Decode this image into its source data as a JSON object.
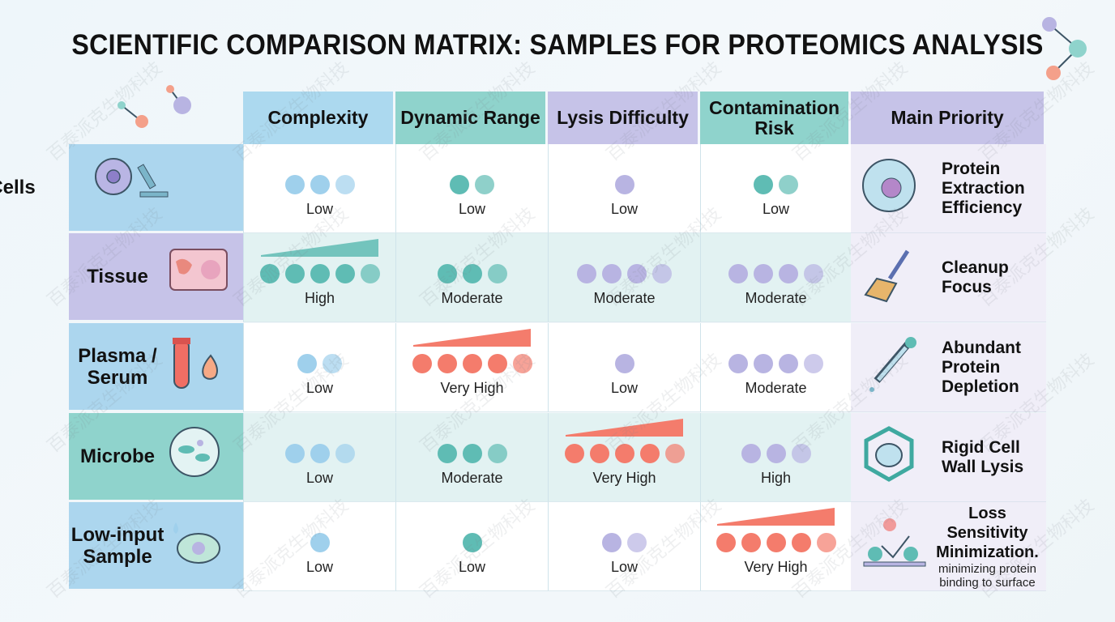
{
  "title": "SCIENTIFIC COMPARISON MATRIX: SAMPLES FOR PROTEOMICS ANALYSIS",
  "watermark": "百泰派克生物科技",
  "colors": {
    "blue": "#9fd0ec",
    "teal": "#5fbcb4",
    "purple": "#b8b4e2",
    "coral": "#f47c6c"
  },
  "columns": [
    {
      "label": "Complexity",
      "color": "#acd9ef"
    },
    {
      "label": "Dynamic Range",
      "color": "#8fd3cc"
    },
    {
      "label": "Lysis Difficulty",
      "color": "#c6c3e8"
    },
    {
      "label": "Contamination Risk",
      "color": "#8fd3cc"
    },
    {
      "label": "Main Priority",
      "color": "#c6c3e8"
    }
  ],
  "rows": [
    {
      "label": "Cells",
      "label_color": "#acd6ee",
      "icon": "cell-microscope-icon",
      "bg": "#ffffff",
      "cells": [
        {
          "level": "Low",
          "dots": 3,
          "color": "blue"
        },
        {
          "level": "Low",
          "dots": 2,
          "color": "teal"
        },
        {
          "level": "Low",
          "dots": 1,
          "color": "purple"
        },
        {
          "level": "Low",
          "dots": 2,
          "color": "teal"
        }
      ],
      "priority": {
        "title": "Protein Extraction Efficiency",
        "icon": "cell-icon"
      }
    },
    {
      "label": "Tissue",
      "label_color": "#c6c3e8",
      "icon": "tissue-icon",
      "bg": "#e2f2f2",
      "cells": [
        {
          "level": "High",
          "dots": 5,
          "color": "teal",
          "wedge": true
        },
        {
          "level": "Moderate",
          "dots": 3,
          "color": "teal"
        },
        {
          "level": "Moderate",
          "dots": 4,
          "color": "purple"
        },
        {
          "level": "Moderate",
          "dots": 4,
          "color": "purple"
        }
      ],
      "priority": {
        "title": "Cleanup Focus",
        "icon": "broom-icon"
      }
    },
    {
      "label": "Plasma / Serum",
      "label_color": "#acd6ee",
      "icon": "blood-tube-icon",
      "bg": "#ffffff",
      "cells": [
        {
          "level": "Low",
          "dots": 2,
          "color": "blue"
        },
        {
          "level": "Very High",
          "dots": 5,
          "color": "coral",
          "wedge": true
        },
        {
          "level": "Low",
          "dots": 1,
          "color": "purple"
        },
        {
          "level": "Moderate",
          "dots": 4,
          "color": "purple"
        }
      ],
      "priority": {
        "title": "Abundant Protein Depletion",
        "icon": "dropper-icon"
      }
    },
    {
      "label": "Microbe",
      "label_color": "#8fd3cc",
      "icon": "microbe-icon",
      "bg": "#e2f2f2",
      "cells": [
        {
          "level": "Low",
          "dots": 3,
          "color": "blue"
        },
        {
          "level": "Moderate",
          "dots": 3,
          "color": "teal"
        },
        {
          "level": "Very High",
          "dots": 5,
          "color": "coral",
          "wedge": true
        },
        {
          "level": "High",
          "dots": 3,
          "color": "purple"
        }
      ],
      "priority": {
        "title": "Rigid Cell Wall Lysis",
        "icon": "cell-wall-icon"
      }
    },
    {
      "label": "Low-input Sample",
      "label_color": "#acd6ee",
      "icon": "droplet-cell-icon",
      "bg": "#ffffff",
      "cells": [
        {
          "level": "Low",
          "dots": 1,
          "color": "blue"
        },
        {
          "level": "Low",
          "dots": 1,
          "color": "teal"
        },
        {
          "level": "Low",
          "dots": 2,
          "color": "purple"
        },
        {
          "level": "Very High",
          "dots": 5,
          "color": "coral",
          "wedge": true
        }
      ],
      "priority": {
        "title": "Loss Sensitivity Minimization.",
        "subtitle": "minimizing protein binding to surface",
        "icon": "surface-binding-icon"
      }
    }
  ]
}
